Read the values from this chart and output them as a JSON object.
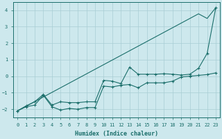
{
  "x": [
    0,
    1,
    2,
    3,
    4,
    5,
    6,
    7,
    8,
    9,
    10,
    11,
    12,
    13,
    14,
    15,
    16,
    17,
    18,
    19,
    20,
    21,
    22,
    23
  ],
  "line_upper": [
    -2.1,
    -1.8,
    -1.55,
    -1.1,
    -1.75,
    -1.55,
    -1.6,
    -1.6,
    -1.55,
    -1.55,
    -0.25,
    -0.3,
    -0.45,
    0.55,
    0.12,
    0.12,
    0.12,
    0.15,
    0.12,
    0.07,
    0.12,
    0.48,
    1.38,
    4.15
  ],
  "line_middle": [
    -2.1,
    -1.85,
    -1.75,
    -1.15,
    -1.85,
    -2.05,
    -1.95,
    -2.0,
    -1.9,
    -1.9,
    -0.6,
    -0.65,
    -0.55,
    -0.5,
    -0.7,
    -0.4,
    -0.4,
    -0.4,
    -0.3,
    -0.05,
    0.0,
    0.05,
    0.1,
    0.2
  ],
  "line_straight": [
    -2.1,
    -1.82,
    -1.54,
    -1.26,
    -0.98,
    -0.7,
    -0.42,
    -0.14,
    0.14,
    0.42,
    0.7,
    0.98,
    1.26,
    1.54,
    1.82,
    2.1,
    2.38,
    2.66,
    2.94,
    3.22,
    3.5,
    3.78,
    3.5,
    4.15
  ],
  "bg_color": "#cde8ed",
  "line_color": "#1a6e6a",
  "grid_color": "#a8cdd4",
  "xlabel": "Humidex (Indice chaleur)",
  "ylim": [
    -2.5,
    4.5
  ],
  "xlim": [
    -0.5,
    23.5
  ],
  "yticks": [
    -2,
    -1,
    0,
    1,
    2,
    3,
    4
  ],
  "xticks": [
    0,
    1,
    2,
    3,
    4,
    5,
    6,
    7,
    8,
    9,
    10,
    11,
    12,
    13,
    14,
    15,
    16,
    17,
    18,
    19,
    20,
    21,
    22,
    23
  ]
}
